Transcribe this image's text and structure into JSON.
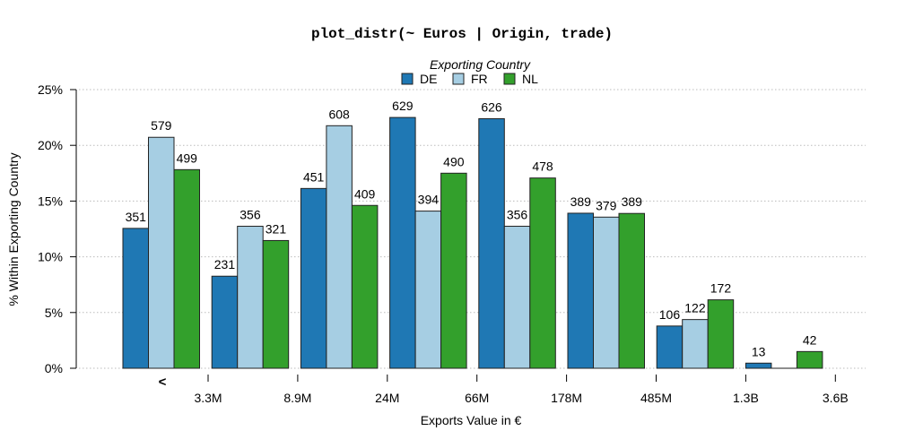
{
  "chart_data": {
    "type": "bar",
    "title": "plot_distr(~ Euros | Origin, trade)",
    "xlabel": "Exports Value in €",
    "ylabel": "% Within Exporting Country",
    "ylim": [
      0,
      25
    ],
    "yticks": [
      "0%",
      "5%",
      "10%",
      "15%",
      "20%",
      "25%"
    ],
    "ytick_values": [
      0,
      5,
      10,
      15,
      20,
      25
    ],
    "grid": "horizontal dotted",
    "first_bin_label": "<",
    "xtick_labels": [
      "3.3M",
      "8.9M",
      "24M",
      "66M",
      "178M",
      "485M",
      "1.3B",
      "3.6B"
    ],
    "legend": {
      "title": "Exporting Country",
      "placement": "top"
    },
    "series": [
      {
        "name": "DE",
        "color": "#1F78B4",
        "values": [
          12.55,
          8.26,
          16.13,
          22.5,
          22.39,
          13.91,
          3.79,
          0.46
        ],
        "labels": [
          "351",
          "231",
          "451",
          "629",
          "626",
          "389",
          "106",
          "13"
        ]
      },
      {
        "name": "FR",
        "color": "#A6CEE3",
        "values": [
          20.72,
          12.74,
          21.76,
          14.1,
          12.74,
          13.56,
          4.37,
          0
        ],
        "labels": [
          "579",
          "356",
          "608",
          "394",
          "356",
          "379",
          "122",
          ""
        ]
      },
      {
        "name": "NL",
        "color": "#33A02C",
        "values": [
          17.82,
          11.46,
          14.61,
          17.5,
          17.07,
          13.89,
          6.14,
          1.5
        ],
        "labels": [
          "499",
          "321",
          "409",
          "490",
          "478",
          "389",
          "172",
          "42"
        ]
      }
    ]
  }
}
